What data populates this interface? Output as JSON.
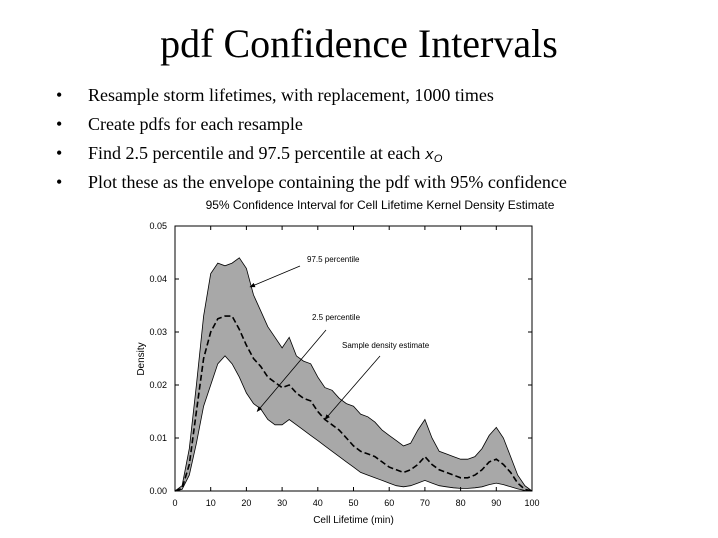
{
  "slide": {
    "title": "pdf Confidence Intervals",
    "bullets": [
      "Resample storm lifetimes, with replacement, 1000 times",
      "Create pdfs for each resample",
      "Find 2.5 percentile and 97.5 percentile at each ",
      "Plot these as the envelope containing the pdf with 95% confidence"
    ],
    "bullet_marker": "•",
    "bullet3_symbol": "x",
    "bullet3_subscript": "O"
  },
  "chart_data": {
    "type": "area",
    "title": "95% Confidence Interval for Cell Lifetime Kernel Density Estimate",
    "xlabel": "Cell Lifetime (min)",
    "ylabel": "Density",
    "xlim": [
      0,
      100
    ],
    "ylim": [
      0,
      0.05
    ],
    "x_ticks": [
      "0",
      "10",
      "20",
      "30",
      "40",
      "50",
      "60",
      "70",
      "80",
      "90",
      "100"
    ],
    "y_ticks": [
      "0.00",
      "0.01",
      "0.02",
      "0.03",
      "0.04",
      "0.05"
    ],
    "x": [
      0,
      2,
      4,
      6,
      8,
      10,
      12,
      14,
      16,
      18,
      20,
      22,
      24,
      26,
      28,
      30,
      32,
      34,
      36,
      38,
      40,
      42,
      44,
      46,
      48,
      50,
      52,
      54,
      56,
      58,
      60,
      62,
      64,
      66,
      68,
      70,
      72,
      74,
      76,
      78,
      80,
      82,
      84,
      86,
      88,
      90,
      92,
      94,
      96,
      98,
      100
    ],
    "series": [
      {
        "name": "97.5 percentile",
        "values": [
          0.0,
          0.001,
          0.008,
          0.02,
          0.033,
          0.041,
          0.043,
          0.0425,
          0.043,
          0.044,
          0.042,
          0.037,
          0.034,
          0.031,
          0.029,
          0.027,
          0.029,
          0.0255,
          0.0245,
          0.024,
          0.0215,
          0.0195,
          0.019,
          0.0175,
          0.0165,
          0.016,
          0.0145,
          0.014,
          0.013,
          0.0115,
          0.0105,
          0.0095,
          0.0085,
          0.009,
          0.0115,
          0.0135,
          0.01,
          0.0075,
          0.007,
          0.0065,
          0.006,
          0.006,
          0.0065,
          0.008,
          0.0105,
          0.012,
          0.01,
          0.0065,
          0.003,
          0.001,
          0.0
        ]
      },
      {
        "name": "Sample density estimate",
        "values": [
          0.0,
          0.0005,
          0.005,
          0.015,
          0.025,
          0.03,
          0.0325,
          0.033,
          0.033,
          0.0305,
          0.0275,
          0.025,
          0.0235,
          0.0215,
          0.0205,
          0.0195,
          0.02,
          0.0185,
          0.0175,
          0.017,
          0.015,
          0.0135,
          0.0125,
          0.0115,
          0.01,
          0.0085,
          0.0075,
          0.007,
          0.0065,
          0.0055,
          0.0045,
          0.004,
          0.0035,
          0.004,
          0.005,
          0.0065,
          0.005,
          0.004,
          0.0035,
          0.003,
          0.0025,
          0.0025,
          0.003,
          0.004,
          0.0055,
          0.006,
          0.005,
          0.0035,
          0.0015,
          0.0003,
          0.0
        ]
      },
      {
        "name": "2.5 percentile",
        "values": [
          0.0,
          0.0003,
          0.003,
          0.009,
          0.016,
          0.02,
          0.024,
          0.0255,
          0.024,
          0.0215,
          0.0185,
          0.0165,
          0.0155,
          0.0135,
          0.0125,
          0.0125,
          0.0135,
          0.0125,
          0.0115,
          0.0105,
          0.0095,
          0.0085,
          0.0075,
          0.0065,
          0.0055,
          0.0045,
          0.0035,
          0.003,
          0.0025,
          0.002,
          0.0015,
          0.001,
          0.0008,
          0.001,
          0.0015,
          0.002,
          0.0015,
          0.001,
          0.0008,
          0.0006,
          0.0005,
          0.0005,
          0.0006,
          0.0008,
          0.0012,
          0.0015,
          0.0012,
          0.0008,
          0.0004,
          0.0001,
          0.0
        ]
      }
    ],
    "annotations": [
      {
        "text": "97.5 percentile",
        "points_to_x": 21,
        "points_to_y": 0.0385
      },
      {
        "text": "2.5 percentile",
        "points_to_x": 23,
        "points_to_y": 0.015
      },
      {
        "text": "Sample density estimate",
        "points_to_x": 42,
        "points_to_y": 0.0135
      }
    ],
    "band_color": "#a8a8a8",
    "line_color": "#000000",
    "grid": false
  }
}
